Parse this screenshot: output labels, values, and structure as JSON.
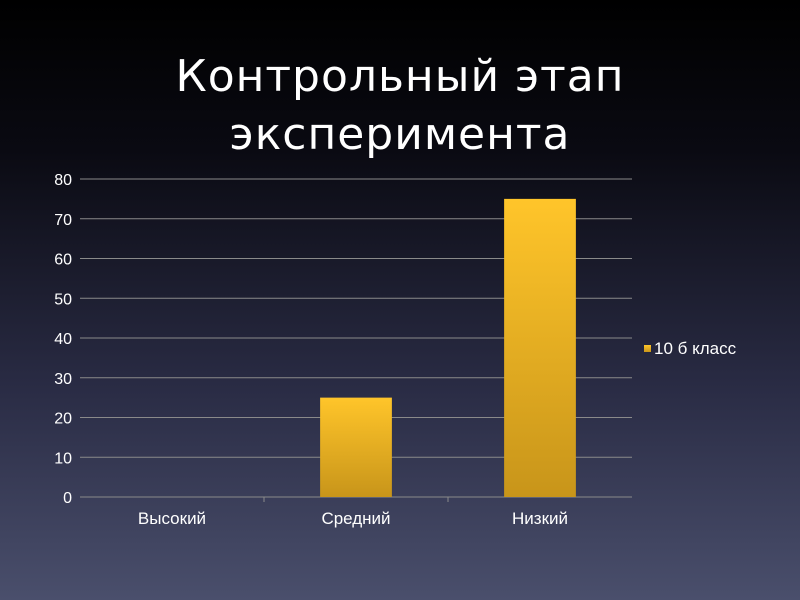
{
  "slide": {
    "title_line1": "Контрольный этап",
    "title_line2": "эксперимента"
  },
  "chart_data": {
    "type": "bar",
    "title": "",
    "xlabel": "",
    "ylabel": "",
    "categories": [
      "Высокий",
      "Средний",
      "Низкий"
    ],
    "series": [
      {
        "name": "10 б класс",
        "values": [
          0,
          25,
          75
        ]
      }
    ],
    "ylim": [
      0,
      80
    ],
    "yticks": [
      0,
      10,
      20,
      30,
      40,
      50,
      60,
      70,
      80
    ],
    "grid": true,
    "legend": "right",
    "colors": {
      "bar_top": "#ffc52a",
      "bar_bottom": "#c8951a",
      "gridline": "#8a8a8a",
      "text": "#ffffff"
    }
  }
}
